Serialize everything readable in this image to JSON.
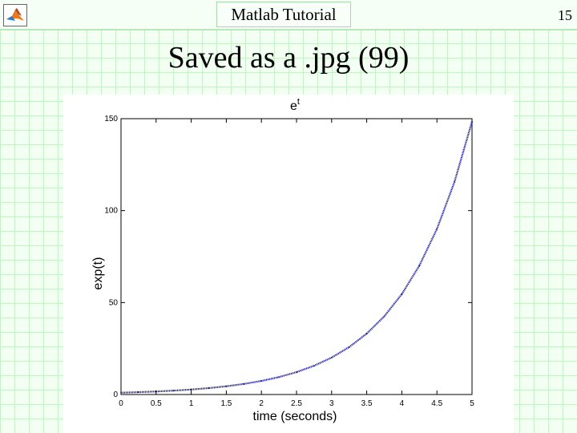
{
  "header": {
    "title": "Matlab Tutorial",
    "page_number": "15",
    "logo_icon": "matlab-logo-icon"
  },
  "slide_title": "Saved as a .jpg (99)",
  "colors": {
    "background": "#f2fff2",
    "grid": "#c8f0c8",
    "curve": "#1a1aa8"
  },
  "chart_data": {
    "type": "line",
    "title": "e^t",
    "title_base": "e",
    "title_superscript": "t",
    "xlabel": "time (seconds)",
    "ylabel": "exp(t)",
    "xlim": [
      0,
      5
    ],
    "ylim": [
      0,
      150
    ],
    "xticks": [
      0,
      0.5,
      1,
      1.5,
      2,
      2.5,
      3,
      3.5,
      4,
      4.5,
      5
    ],
    "xtick_labels": [
      "0",
      "0.5",
      "1",
      "1.5",
      "2",
      "2.5",
      "3",
      "3.5",
      "4",
      "4.5",
      "5"
    ],
    "yticks": [
      0,
      50,
      100,
      150
    ],
    "ytick_labels": [
      "0",
      "50",
      "100",
      "150"
    ],
    "grid": false,
    "series": [
      {
        "x": [
          0,
          0.25,
          0.5,
          0.75,
          1,
          1.25,
          1.5,
          1.75,
          2,
          2.25,
          2.5,
          2.75,
          3,
          3.25,
          3.5,
          3.75,
          4,
          4.25,
          4.5,
          4.75,
          5
        ],
        "y": [
          1,
          1.28,
          1.65,
          2.12,
          2.72,
          3.49,
          4.48,
          5.75,
          7.39,
          9.49,
          12.18,
          15.64,
          20.09,
          25.79,
          33.12,
          42.52,
          54.6,
          70.11,
          90.02,
          115.58,
          148.41
        ]
      }
    ]
  }
}
